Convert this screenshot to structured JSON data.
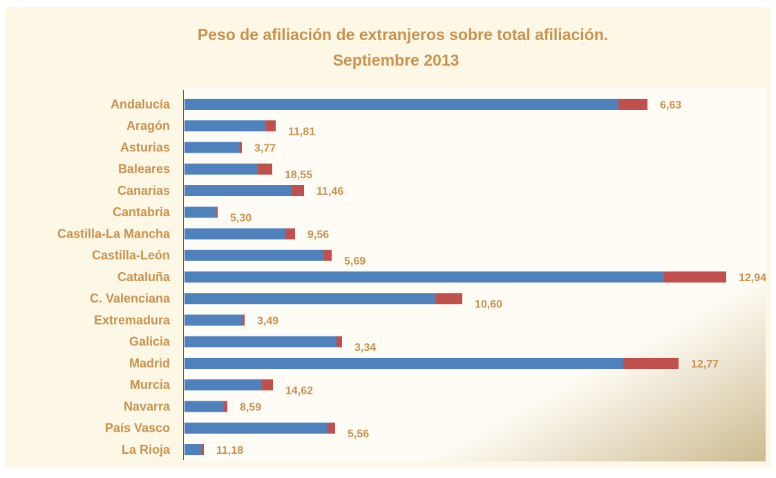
{
  "chart_data": {
    "type": "stacked_barh",
    "title": "Peso de afiliación de extranjeros sobre total afiliación.",
    "subtitle": "Septiembre 2013",
    "categories": [
      "Andalucía",
      "Aragón",
      "Asturias",
      "Baleares",
      "Canarias",
      "Cantabria",
      "Castilla-La Mancha",
      "Castilla-León",
      "Cataluña",
      "C. Valenciana",
      "Extremadura",
      "Galicia",
      "Madrid",
      "Murcia",
      "Navarra",
      "País Vasco",
      "La Rioja"
    ],
    "series": [
      {
        "color": "#4f81bd",
        "values": [
          2512,
          472,
          320,
          424,
          620,
          184,
          584,
          804,
          2776,
          1456,
          336,
          880,
          2540,
          448,
          228,
          824,
          100
        ]
      },
      {
        "color": "#c0504d",
        "values": [
          168,
          56,
          12,
          84,
          72,
          8,
          56,
          48,
          360,
          152,
          12,
          32,
          320,
          64,
          20,
          48,
          12
        ]
      }
    ],
    "value_labels": [
      "6,63",
      "11,81",
      "3,77",
      "18,55",
      "11,46",
      "5,30",
      "9,56",
      "5,69",
      "12,94",
      "10,60",
      "3,49",
      "3,34",
      "12,77",
      "14,62",
      "8,59",
      "5,56",
      "11,18"
    ],
    "xlim": [
      0,
      3300
    ]
  }
}
